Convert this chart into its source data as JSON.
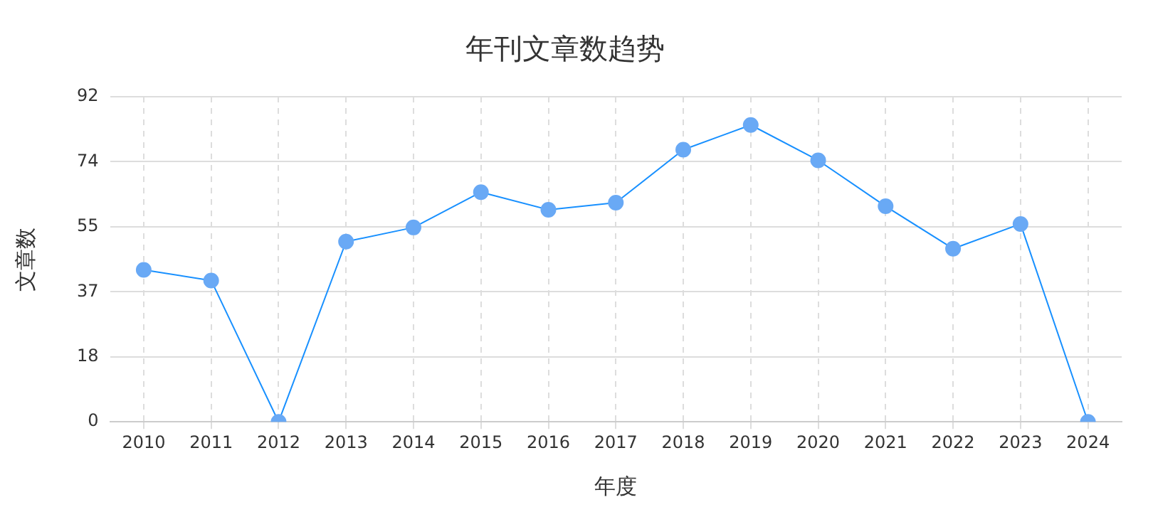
{
  "chart_data": {
    "type": "line",
    "title": "年刊文章数趋势",
    "xlabel": "年度",
    "ylabel": "文章数",
    "categories": [
      "2010",
      "2011",
      "2012",
      "2013",
      "2014",
      "2015",
      "2016",
      "2017",
      "2018",
      "2019",
      "2020",
      "2021",
      "2022",
      "2023",
      "2024"
    ],
    "series": [
      {
        "color": "#1890ff",
        "values": [
          43,
          40,
          0,
          51,
          55,
          65,
          60,
          62,
          77,
          84,
          74,
          61,
          49,
          56,
          0
        ]
      }
    ],
    "ylim": [
      0,
      92
    ],
    "yticks": [
      0,
      {
        "value": 18.4,
        "label": "18"
      },
      {
        "value": 36.8,
        "label": "37"
      },
      {
        "value": 55.2,
        "label": "55"
      },
      {
        "value": 73.6,
        "label": "74"
      },
      92
    ],
    "grid": true,
    "legend": false,
    "marker": "circle",
    "line_style": "solid"
  }
}
